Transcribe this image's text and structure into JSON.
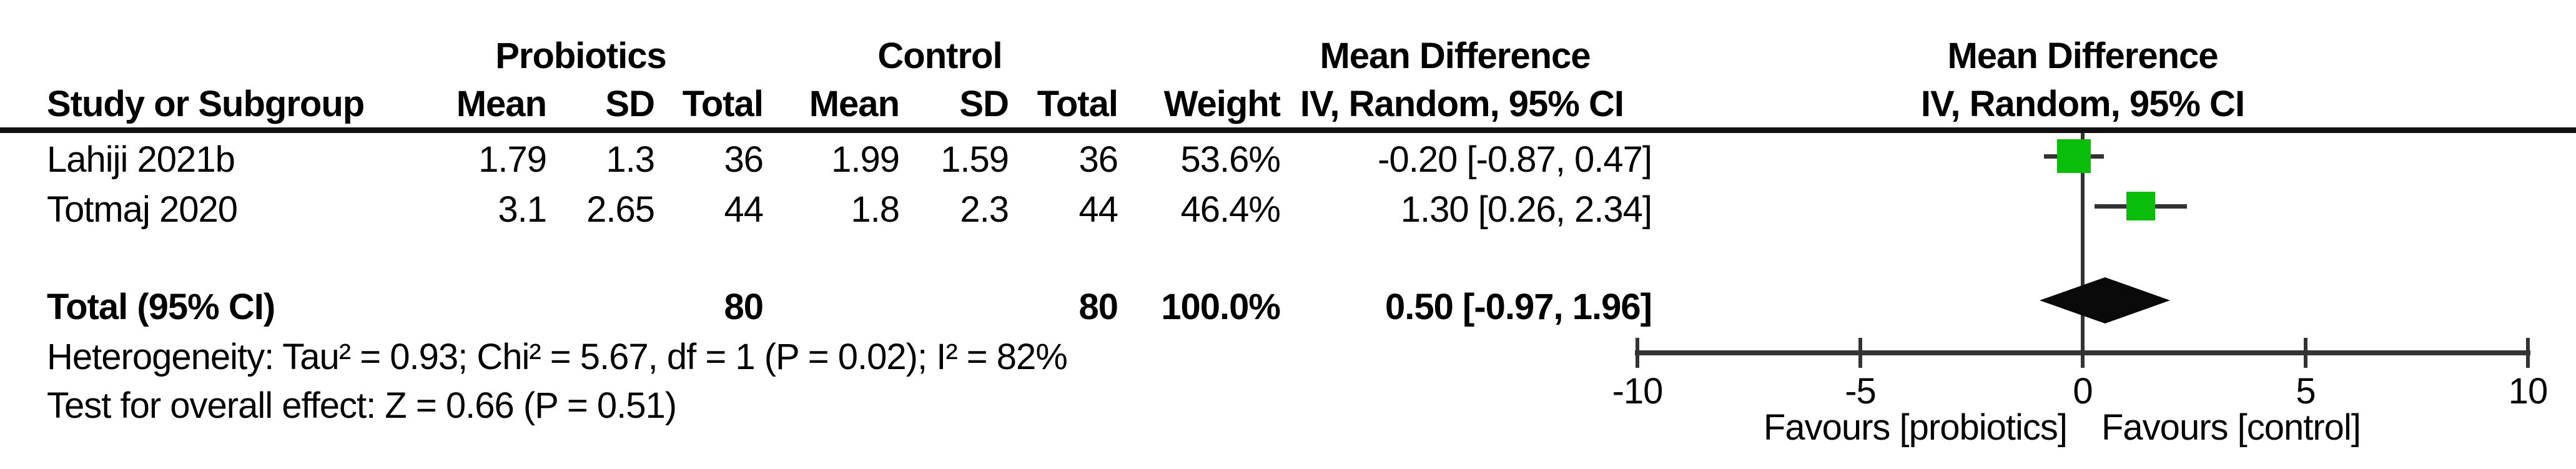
{
  "header": {
    "group_probiotics": "Probiotics",
    "group_control": "Control",
    "group_md_text": "Mean Difference",
    "plot_md_title": "Mean Difference",
    "col_study": "Study or Subgroup",
    "col_mean_p": "Mean",
    "col_sd_p": "SD",
    "col_total_p": "Total",
    "col_mean_c": "Mean",
    "col_sd_c": "SD",
    "col_total_c": "Total",
    "col_weight": "Weight",
    "col_ci": "IV, Random, 95% CI",
    "plot_ci_title": "IV, Random, 95% CI"
  },
  "rows": [
    {
      "study": "Lahiji 2021b",
      "mean_p": "1.79",
      "sd_p": "1.3",
      "total_p": "36",
      "mean_c": "1.99",
      "sd_c": "1.59",
      "total_c": "36",
      "weight": "53.6%",
      "ci_text": "-0.20 [-0.87, 0.47]"
    },
    {
      "study": "Totmaj 2020",
      "mean_p": "3.1",
      "sd_p": "2.65",
      "total_p": "44",
      "mean_c": "1.8",
      "sd_c": "2.3",
      "total_c": "44",
      "weight": "46.4%",
      "ci_text": "1.30 [0.26, 2.34]"
    }
  ],
  "total_row": {
    "label": "Total (95% CI)",
    "total_p": "80",
    "total_c": "80",
    "weight": "100.0%",
    "ci_text": "0.50 [-0.97, 1.96]"
  },
  "footnotes": {
    "heterogeneity": "Heterogeneity: Tau² = 0.93; Chi² = 5.67, df = 1 (P = 0.02); I² = 82%",
    "overall_effect": "Test for overall effect: Z = 0.66 (P = 0.51)"
  },
  "axis": {
    "tick_labels": [
      "-10",
      "-5",
      "0",
      "5",
      "10"
    ],
    "favours_left": "Favours [probiotics]",
    "favours_right": "Favours [control]"
  },
  "colors": {
    "square_green": "#0BBD0B",
    "line": "#333333",
    "diamond": "#0A0A0A",
    "text": "#000000"
  },
  "chart_data": {
    "type": "forest",
    "effect_measure": "Mean Difference, IV, Random, 95% CI",
    "x_axis": {
      "min": -10,
      "max": 10,
      "ticks": [
        -10,
        -5,
        0,
        5,
        10
      ],
      "label_left": "Favours [probiotics]",
      "label_right": "Favours [control]"
    },
    "studies": [
      {
        "name": "Lahiji 2021b",
        "md": -0.2,
        "ci_low": -0.87,
        "ci_high": 0.47,
        "weight_pct": 53.6
      },
      {
        "name": "Totmaj 2020",
        "md": 1.3,
        "ci_low": 0.26,
        "ci_high": 2.34,
        "weight_pct": 46.4
      }
    ],
    "total": {
      "md": 0.5,
      "ci_low": -0.97,
      "ci_high": 1.96,
      "weight_pct": 100.0,
      "n_probiotics": 80,
      "n_control": 80
    },
    "heterogeneity": {
      "tau2": 0.93,
      "chi2": 5.67,
      "df": 1,
      "p": 0.02,
      "i2_pct": 82
    },
    "overall_effect": {
      "z": 0.66,
      "p": 0.51
    }
  }
}
